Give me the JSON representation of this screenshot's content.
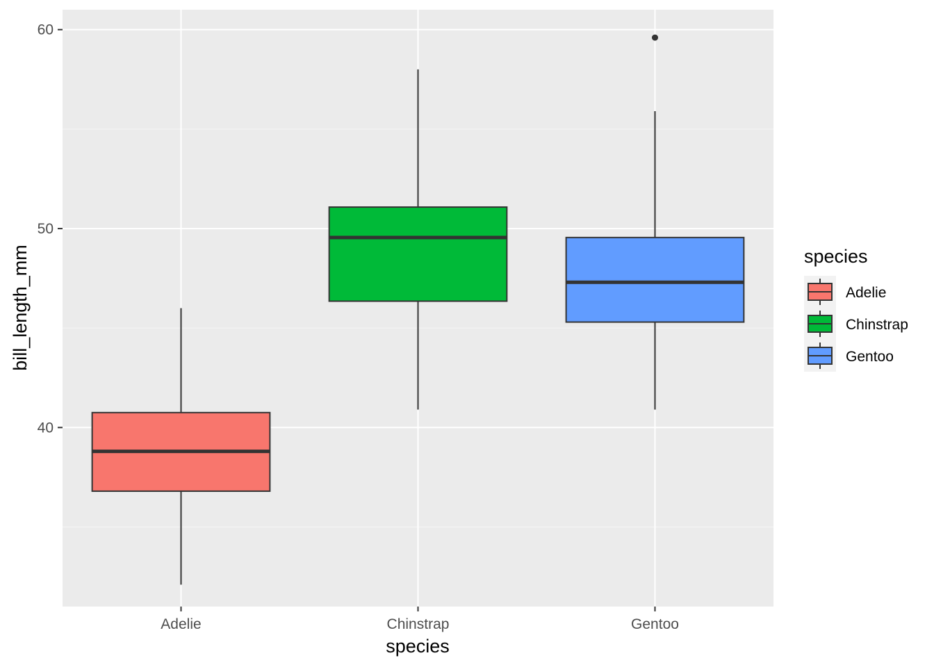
{
  "chart_data": {
    "type": "boxplot",
    "xlabel": "species",
    "ylabel": "bill_length_mm",
    "ylim": [
      31.0,
      61.0
    ],
    "yticks": [
      40,
      50,
      60
    ],
    "yminor": [
      35,
      45,
      55
    ],
    "grid": true,
    "categories": [
      "Adelie",
      "Chinstrap",
      "Gentoo"
    ],
    "boxes": [
      {
        "name": "Adelie",
        "fill": "#F8766D",
        "whisker_low": 32.1,
        "q1": 36.8,
        "median": 38.8,
        "q3": 40.75,
        "whisker_high": 46.0,
        "outliers": []
      },
      {
        "name": "Chinstrap",
        "fill": "#00BA38",
        "whisker_low": 40.9,
        "q1": 46.35,
        "median": 49.55,
        "q3": 51.08,
        "whisker_high": 58.0,
        "outliers": []
      },
      {
        "name": "Gentoo",
        "fill": "#619CFF",
        "whisker_low": 40.9,
        "q1": 45.3,
        "median": 47.3,
        "q3": 49.55,
        "whisker_high": 55.9,
        "outliers": [
          59.6
        ]
      }
    ],
    "legend": {
      "title": "species",
      "position": "right",
      "entries": [
        {
          "label": "Adelie",
          "fill": "#F8766D"
        },
        {
          "label": "Chinstrap",
          "fill": "#00BA38"
        },
        {
          "label": "Gentoo",
          "fill": "#619CFF"
        }
      ]
    },
    "colors": {
      "panel": "#EBEBEB",
      "grid_major": "#FFFFFF",
      "grid_minor": "#F5F5F5",
      "box_outline": "#333333"
    }
  }
}
